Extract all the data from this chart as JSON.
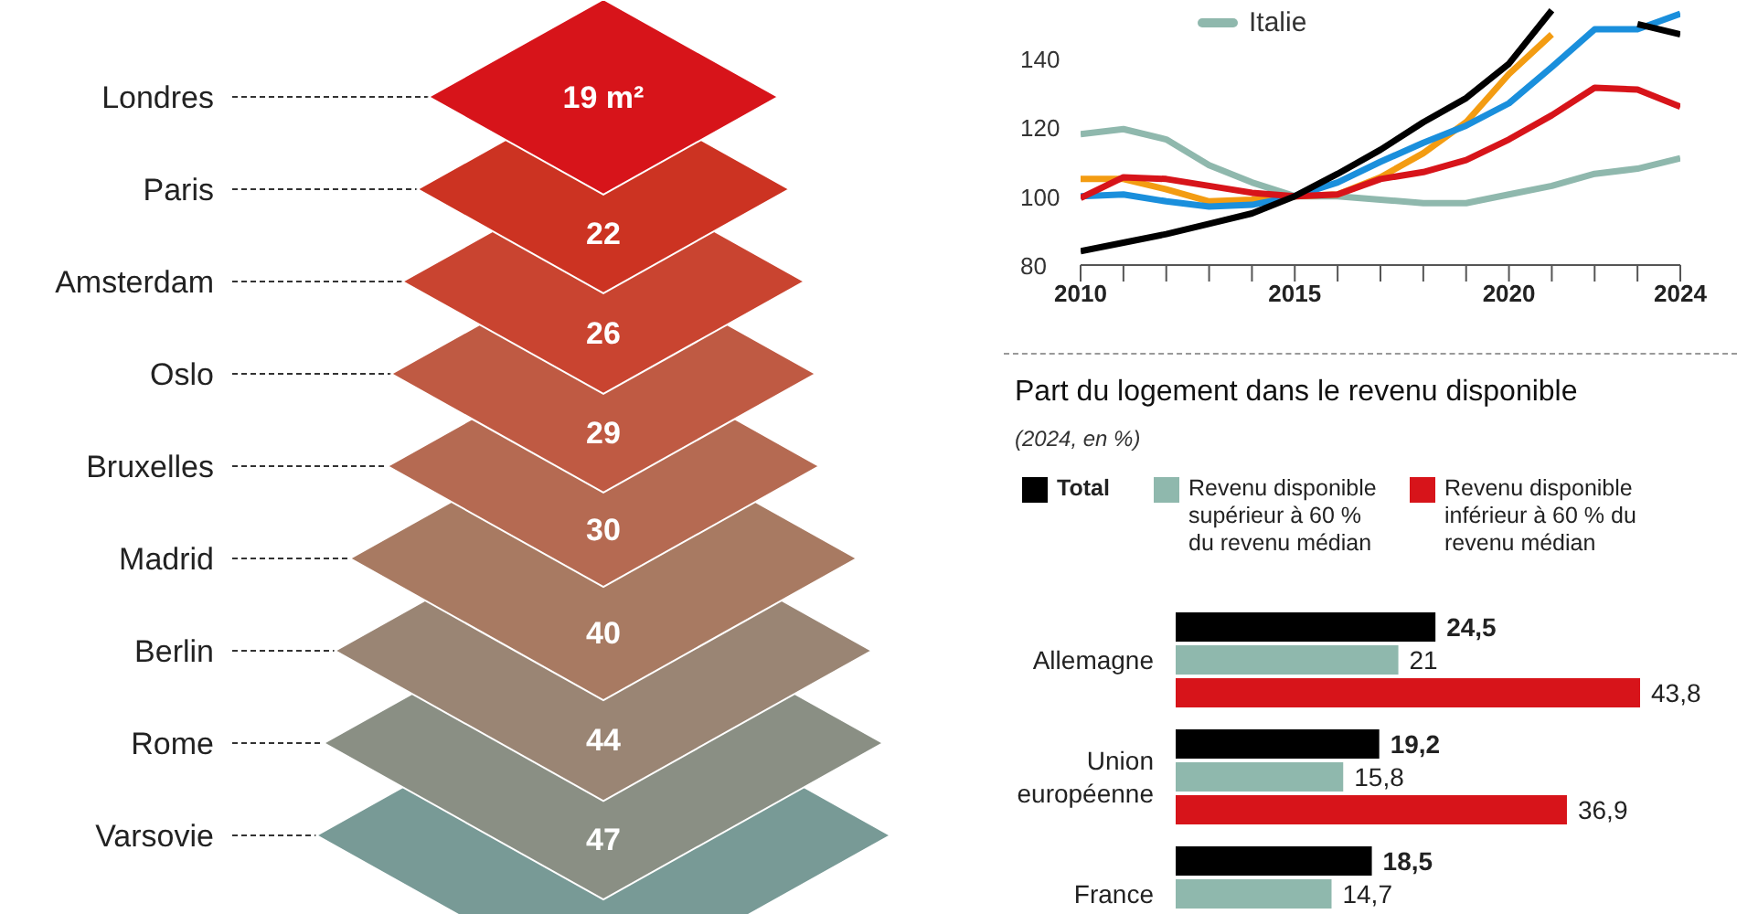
{
  "chart_data": [
    {
      "type": "other",
      "categories": [
        "Londres",
        "Paris",
        "Amsterdam",
        "Oslo",
        "Bruxelles",
        "Madrid",
        "Berlin",
        "Rome",
        "Varsovie"
      ],
      "values": [
        19,
        22,
        26,
        29,
        30,
        40,
        44,
        47,
        null
      ],
      "value_labels": [
        "19 m²",
        "22",
        "26",
        "29",
        "30",
        "40",
        "44",
        "47",
        null
      ],
      "colors": [
        "#d7141a",
        "#cc3322",
        "#c94430",
        "#bf5a43",
        "#b56a52",
        "#a87a62",
        "#9a8574",
        "#8a8f84",
        "#789a96"
      ]
    },
    {
      "type": "line",
      "x": [
        2010,
        2011,
        2012,
        2013,
        2014,
        2015,
        2016,
        2017,
        2018,
        2019,
        2020,
        2021,
        2022,
        2023,
        2024
      ],
      "xlim": [
        2010,
        2024
      ],
      "xticks": [
        2010,
        {
          "value": 2011,
          "label": null
        },
        {
          "value": 2012,
          "label": null
        },
        {
          "value": 2013,
          "label": null
        },
        {
          "value": 2014,
          "label": null
        },
        2015,
        {
          "value": 2016,
          "label": null
        },
        {
          "value": 2017,
          "label": null
        },
        {
          "value": 2018,
          "label": null
        },
        {
          "value": 2019,
          "label": null
        },
        2020,
        {
          "value": 2021,
          "label": null
        },
        {
          "value": 2022,
          "label": null
        },
        {
          "value": 2023,
          "label": null
        },
        2024
      ],
      "ylim": [
        80,
        157
      ],
      "yticks": [
        80,
        100,
        120,
        140
      ],
      "legend": "top left",
      "series": [
        {
          "color": "#8fb8ad",
          "name": "Italie",
          "values": [
            118,
            119.5,
            116.5,
            109,
            104,
            100,
            100,
            99,
            98,
            98,
            100.5,
            103,
            106.5,
            108,
            111
          ]
        },
        {
          "color": "#f39c12",
          "values": [
            105,
            105,
            102,
            98.5,
            99,
            100,
            100.5,
            105.5,
            112.5,
            121.5,
            135.5,
            147,
            null,
            null,
            null
          ]
        },
        {
          "color": "#1a8fdc",
          "values": [
            100,
            100.5,
            98.5,
            97,
            97.5,
            100,
            104,
            110,
            115.5,
            120.5,
            127,
            137.5,
            148.5,
            148.5,
            153
          ]
        },
        {
          "color": "#d7141a",
          "values": [
            99.5,
            105.5,
            105,
            103,
            101,
            100,
            100.5,
            105,
            107,
            110.5,
            116.5,
            123.5,
            131.5,
            131,
            126
          ]
        },
        {
          "color": "#000000",
          "values": [
            84,
            86.5,
            89,
            92,
            95,
            100,
            106.5,
            113.5,
            121.5,
            128.5,
            138.5,
            154,
            null,
            150,
            147
          ]
        }
      ]
    },
    {
      "type": "bar",
      "orientation": "horizontal",
      "title": "Part du logement dans le revenu disponible",
      "subtitle": "(2024, en %)",
      "categories": [
        "Allemagne",
        "Union européenne",
        "France"
      ],
      "legend": "top",
      "series": [
        {
          "name": "Total",
          "color": "#000000",
          "values": [
            24.5,
            19.2,
            18.5
          ],
          "value_labels": [
            "24,5",
            "19,2",
            "18,5"
          ]
        },
        {
          "name": "Revenu disponible supérieur à 60 % du revenu médian",
          "color": "#8fb8ad",
          "values": [
            21,
            15.8,
            14.7
          ],
          "value_labels": [
            "21",
            "15,8",
            "14,7"
          ]
        },
        {
          "name": "Revenu disponible inférieur à 60 % du revenu médian",
          "color": "#d7141a",
          "values": [
            43.8,
            36.9,
            null
          ],
          "value_labels": [
            "43,8",
            "36,9",
            null
          ]
        }
      ]
    }
  ]
}
